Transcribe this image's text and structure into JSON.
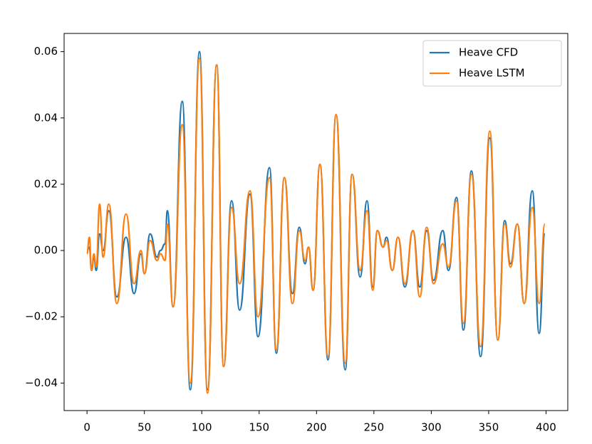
{
  "chart_data": {
    "type": "line",
    "x": [
      0,
      2,
      4,
      6,
      8,
      11,
      14,
      19,
      26,
      34,
      41,
      47,
      50,
      55,
      61,
      64,
      68,
      70,
      75,
      83,
      90,
      98,
      105,
      113,
      119,
      126,
      133,
      142,
      149,
      159,
      165,
      172,
      179,
      185,
      190,
      193,
      197,
      203,
      210,
      217,
      225,
      231,
      238,
      244,
      249,
      253,
      258,
      261,
      266,
      271,
      277,
      284,
      290,
      296,
      302,
      310,
      315,
      322,
      328,
      335,
      343,
      351,
      358,
      364,
      369,
      375,
      381,
      388,
      394,
      399
    ],
    "series": [
      {
        "name": "Heave CFD",
        "color": "#1f77b4",
        "values": [
          0,
          0.001,
          -0.006,
          -0.002,
          -0.006,
          0.005,
          0.0,
          0.012,
          -0.014,
          0.004,
          -0.013,
          -0.001,
          -0.007,
          0.005,
          -0.002,
          0.0,
          0.002,
          0.012,
          -0.017,
          0.045,
          -0.042,
          0.06,
          -0.042,
          0.056,
          -0.035,
          0.015,
          -0.018,
          0.017,
          -0.026,
          0.025,
          -0.031,
          0.022,
          -0.013,
          0.007,
          -0.004,
          0.001,
          -0.012,
          0.026,
          -0.033,
          0.041,
          -0.036,
          0.023,
          -0.008,
          0.015,
          -0.011,
          0.006,
          0.001,
          0.004,
          -0.006,
          0.004,
          -0.011,
          0.006,
          -0.011,
          0.006,
          -0.009,
          0.006,
          -0.006,
          0.016,
          -0.024,
          0.024,
          -0.032,
          0.034,
          -0.027,
          0.009,
          -0.004,
          0.008,
          -0.016,
          0.018,
          -0.025,
          0.005
        ]
      },
      {
        "name": "Heave LSTM",
        "color": "#ff7f0e",
        "values": [
          -0.001,
          0.004,
          -0.006,
          -0.001,
          -0.005,
          0.014,
          -0.002,
          0.014,
          -0.016,
          0.011,
          -0.01,
          0.0,
          -0.007,
          0.003,
          -0.003,
          -0.001,
          -0.003,
          0.008,
          -0.017,
          0.038,
          -0.04,
          0.058,
          -0.043,
          0.056,
          -0.035,
          0.013,
          -0.01,
          0.018,
          -0.02,
          0.022,
          -0.03,
          0.022,
          -0.016,
          0.006,
          -0.003,
          0.001,
          -0.012,
          0.026,
          -0.032,
          0.041,
          -0.034,
          0.023,
          -0.006,
          0.012,
          -0.012,
          0.006,
          0.001,
          0.003,
          -0.006,
          0.004,
          -0.01,
          0.006,
          -0.014,
          0.007,
          -0.01,
          0.002,
          -0.005,
          0.015,
          -0.022,
          0.023,
          -0.029,
          0.036,
          -0.027,
          0.008,
          -0.005,
          0.008,
          -0.016,
          0.013,
          -0.016,
          0.008
        ]
      }
    ],
    "xlim": [
      -19.95,
      418.95
    ],
    "ylim": [
      -0.0483,
      0.0655
    ],
    "xticks": [
      0,
      50,
      100,
      150,
      200,
      250,
      300,
      350,
      400
    ],
    "yticks": [
      {
        "value": -0.04,
        "label": "−0.04"
      },
      {
        "value": -0.02,
        "label": "−0.02"
      },
      {
        "value": 0,
        "label": "0.00"
      },
      {
        "value": 0.02,
        "label": "0.02"
      },
      {
        "value": 0.04,
        "label": "0.04"
      },
      {
        "value": 0.06,
        "label": "0.06"
      }
    ],
    "legend": "upper right"
  }
}
